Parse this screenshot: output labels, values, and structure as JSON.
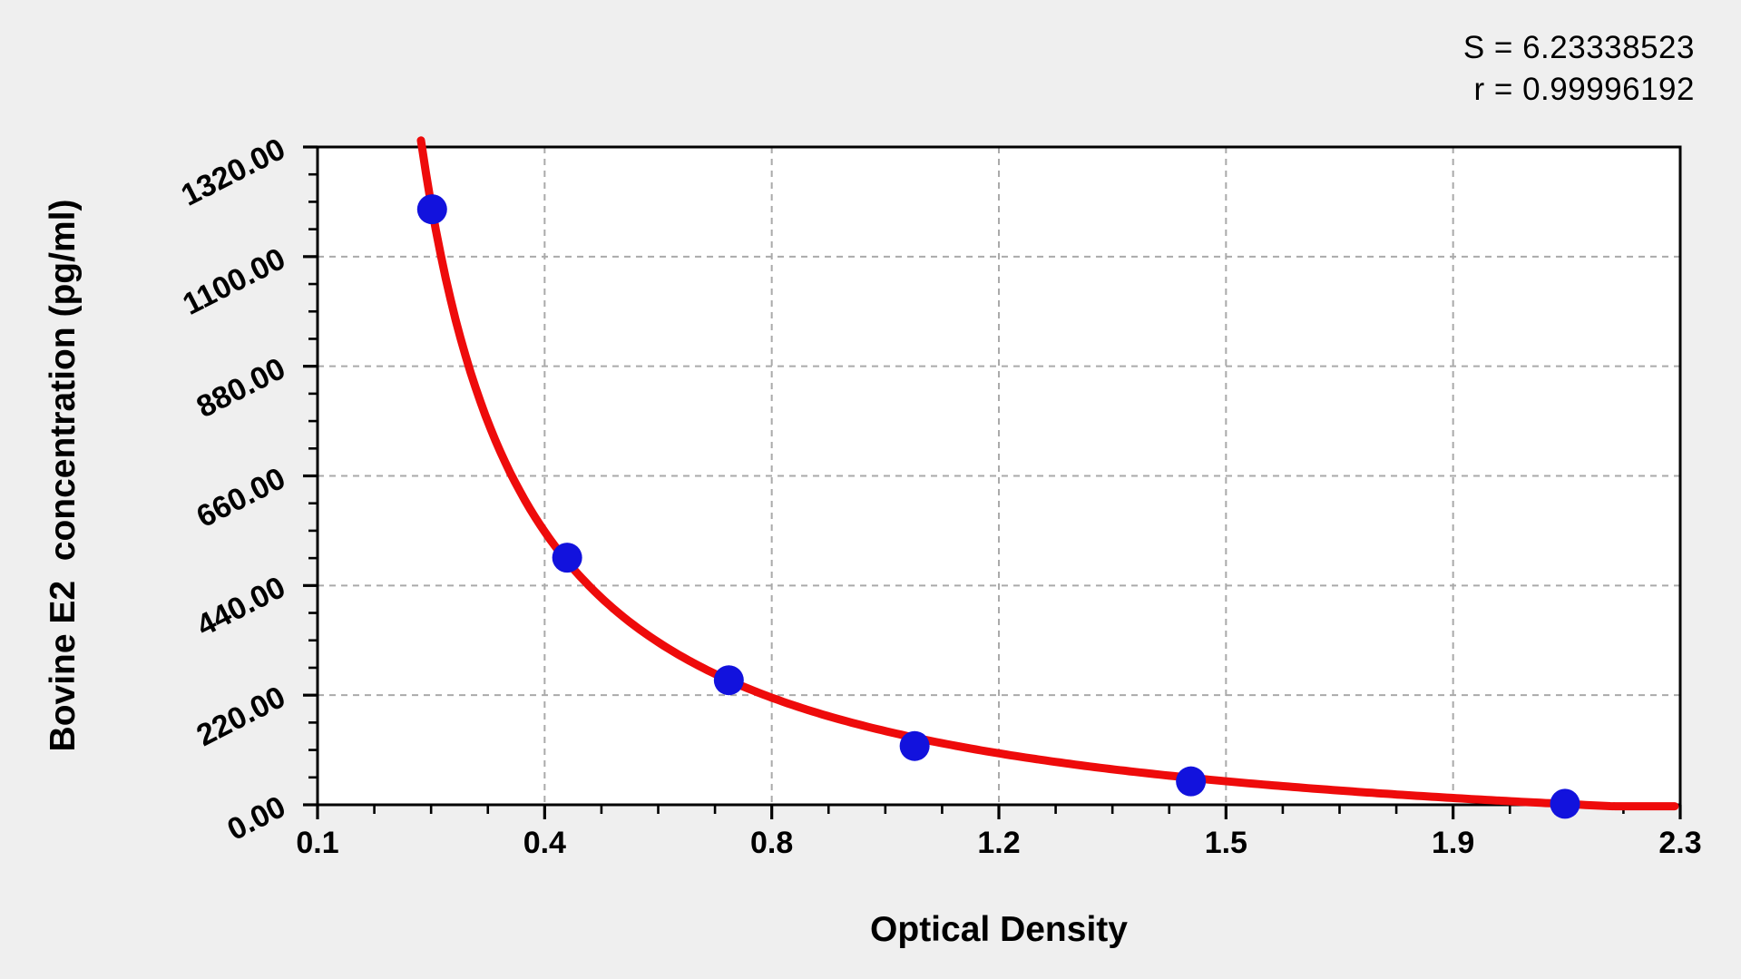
{
  "stats": {
    "s_line": "S = 6.23338523",
    "r_line": "r = 0.99996192"
  },
  "chart_data": {
    "type": "scatter",
    "title": "",
    "xlabel": "Optical Density",
    "ylabel": "Bovine E2  concentration (pg/ml)",
    "x_tick_labels": [
      "0.1",
      "0.4",
      "0.8",
      "1.2",
      "1.5",
      "1.9",
      "2.3"
    ],
    "y_tick_labels": [
      "0.00",
      "220.00",
      "440.00",
      "660.00",
      "880.00",
      "1100.00",
      "1320.00"
    ],
    "x_range": [
      0.1,
      2.3
    ],
    "y_range": [
      0,
      1320
    ],
    "minor_ticks_per_interval": 3,
    "grid": "dashed",
    "legend": "none",
    "series_stats": {
      "S": "6.23338523",
      "r": "0.99996192"
    },
    "points": [
      {
        "od": 0.285,
        "conc": 1195
      },
      {
        "od": 0.503,
        "conc": 496
      },
      {
        "od": 0.764,
        "conc": 250
      },
      {
        "od": 1.064,
        "conc": 118
      },
      {
        "od": 1.51,
        "conc": 47
      },
      {
        "od": 2.114,
        "conc": 2
      }
    ],
    "curve_fit": {
      "model": "conc = A/(od - x0) + C",
      "A": 247.5,
      "x0": 0.0968,
      "C": -121.1,
      "od_start": 0.267,
      "od_end": 2.295
    },
    "colors": {
      "curve": "#ee0b0b",
      "points": "#1212dd",
      "grid": "#aaaaaa",
      "axis": "#000000",
      "background": "#efefef",
      "plot_background": "#ffffff"
    }
  }
}
